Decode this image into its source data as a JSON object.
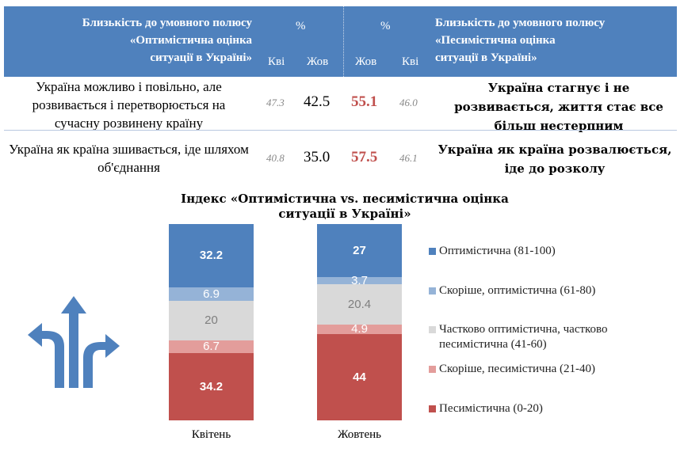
{
  "table": {
    "header_left": [
      "Близькість до умовного полюсу",
      "«Оптимістична оцінка",
      "ситуації в Україні»"
    ],
    "header_right": [
      "Близькість до умовного полюсу",
      "«Песимістична оцінка",
      "ситуації в Україні»"
    ],
    "percent_left": "%",
    "percent_right": "%",
    "col_labels": [
      "Кві",
      "Жов",
      "Жов",
      "Кві"
    ],
    "rows": [
      {
        "left": "Україна можливо і повільно, але розвивається і перетворюється на сучасну розвинену країну",
        "opt_apr": "47.3",
        "opt_oct": "42.5",
        "pes_oct": "55.1",
        "pes_apr": "46.0",
        "right": "Україна стагнує і не розвивається, життя стає все більш нестерпним"
      },
      {
        "left": "Україна як країна зшивається, іде шляхом об'єднання",
        "opt_apr": "40.8",
        "opt_oct": "35.0",
        "pes_oct": "57.5",
        "pes_apr": "46.1",
        "right": "Україна як країна розвалюється, іде до розколу"
      }
    ]
  },
  "chart_data": {
    "type": "bar",
    "stacked": true,
    "title": "Індекс «Оптимістична vs. песимістична оцінка ситуації в Україні»",
    "categories": [
      "Квітень",
      "Жовтень"
    ],
    "ylim": [
      0,
      100
    ],
    "legend_position": "right",
    "series": [
      {
        "name": "Оптимістична (81-100)",
        "values": [
          32.2,
          27
        ],
        "color": "#4f81bd",
        "label_color": "#ffffff",
        "bold": true
      },
      {
        "name": "Скоріше, оптимістична (61-80)",
        "values": [
          6.9,
          3.7
        ],
        "color": "#95b3d7",
        "label_color": "#ffffff",
        "bold": false
      },
      {
        "name": "Частково оптимістична, частково песимістична (41-60)",
        "values": [
          20,
          20.4
        ],
        "color": "#d9d9d9",
        "label_color": "#7f7f7f",
        "bold": false
      },
      {
        "name": "Скоріше, песимістична (21-40)",
        "values": [
          6.7,
          4.9
        ],
        "color": "#e39d9b",
        "label_color": "#ffffff",
        "bold": false
      },
      {
        "name": "Песимістична (0-20)",
        "values": [
          34.2,
          44
        ],
        "color": "#c0504d",
        "label_color": "#ffffff",
        "bold": true
      }
    ]
  },
  "decor": {
    "icon": "branching-arrows-icon",
    "color": "#4f81bd"
  }
}
